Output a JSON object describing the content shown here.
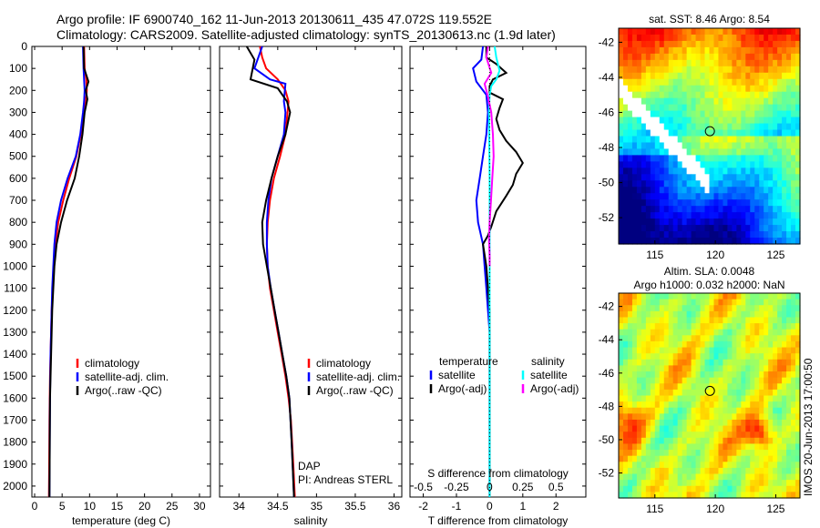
{
  "header": {
    "line1": "Argo profile: IF 6900740_162 11-Jun-2013 20130611_435 47.072S 119.552E",
    "line2": "Climatology: CARS2009. Satellite-adjusted climatology: synTS_20130613.nc (1.9d later)"
  },
  "colors": {
    "climatology": "#ff0000",
    "satellite": "#0000ff",
    "argo": "#000000",
    "sal_satellite": "#00ffff",
    "sal_argo": "#ff00ff"
  },
  "credit": {
    "line1": "DAP",
    "line2": "PI: Andreas STERL"
  },
  "stamp": "IMOS 20-Jun-2013 17:00:50",
  "chart_data": [
    {
      "id": "temperature",
      "type": "line",
      "xlabel": "temperature (deg C)",
      "xlim": [
        -0.5,
        32
      ],
      "xticks": [
        0,
        5,
        10,
        15,
        20,
        25,
        30
      ],
      "ylim": [
        0,
        2050
      ],
      "yticks": [
        0,
        100,
        200,
        300,
        400,
        500,
        600,
        700,
        800,
        900,
        1000,
        1100,
        1200,
        1300,
        1400,
        1500,
        1600,
        1700,
        1800,
        1900,
        2000
      ],
      "legend": [
        "climatology",
        "satellite-adj. clim.",
        "Argo(..raw -QC)"
      ],
      "series": [
        {
          "name": "climatology",
          "color": "climatology",
          "x": [
            9.0,
            9.1,
            9.4,
            9.5,
            9.3,
            9.0,
            8.4,
            7.6,
            6.3,
            5.2,
            4.3,
            3.8,
            3.5,
            3.3,
            3.1,
            3.0,
            2.9,
            2.8,
            2.75,
            2.7,
            2.65,
            2.6
          ],
          "y": [
            0,
            100,
            150,
            200,
            250,
            300,
            400,
            500,
            600,
            700,
            800,
            900,
            1000,
            1100,
            1200,
            1300,
            1400,
            1500,
            1600,
            1700,
            1900,
            2050
          ]
        },
        {
          "name": "satellite-adj. clim.",
          "color": "satellite",
          "x": [
            8.8,
            8.9,
            9.0,
            9.1,
            9.0,
            8.8,
            8.3,
            7.5,
            6.0,
            4.8,
            4.0,
            3.6,
            3.4,
            3.2,
            3.1,
            3.0,
            2.9,
            2.85,
            2.8,
            2.75,
            2.7
          ],
          "y": [
            0,
            100,
            150,
            200,
            250,
            300,
            400,
            500,
            600,
            700,
            800,
            900,
            1000,
            1100,
            1200,
            1300,
            1400,
            1500,
            1600,
            1800,
            2050
          ]
        },
        {
          "name": "Argo(..raw -QC)",
          "color": "argo",
          "x": [
            8.9,
            9.0,
            9.8,
            9.3,
            9.6,
            9.1,
            8.7,
            8.1,
            7.3,
            5.9,
            4.8,
            4.0,
            3.6,
            3.4,
            3.2,
            3.1,
            3.0,
            2.9,
            2.8,
            2.75,
            2.7
          ],
          "y": [
            0,
            100,
            160,
            200,
            240,
            300,
            400,
            500,
            600,
            700,
            800,
            900,
            1000,
            1100,
            1200,
            1300,
            1400,
            1500,
            1600,
            1800,
            2050
          ]
        }
      ]
    },
    {
      "id": "salinity",
      "type": "line",
      "xlabel": "salinity",
      "xlim": [
        33.75,
        36.1
      ],
      "xticks": [
        34,
        34.5,
        35,
        35.5,
        36
      ],
      "ylim": [
        0,
        2050
      ],
      "legend": [
        "climatology",
        "satellite-adj. clim.",
        "Argo(..raw -QC)"
      ],
      "series": [
        {
          "name": "climatology",
          "color": "climatology",
          "x": [
            34.27,
            34.3,
            34.35,
            34.5,
            34.6,
            34.64,
            34.6,
            34.53,
            34.45,
            34.4,
            34.37,
            34.36,
            34.37,
            34.4,
            34.45,
            34.5,
            34.55,
            34.6,
            34.64,
            34.67,
            34.7,
            34.72
          ],
          "y": [
            0,
            50,
            100,
            150,
            200,
            250,
            400,
            500,
            600,
            700,
            800,
            900,
            1000,
            1100,
            1200,
            1300,
            1400,
            1500,
            1600,
            1700,
            1900,
            2050
          ]
        },
        {
          "name": "satellite-adj. clim.",
          "color": "satellite",
          "x": [
            34.3,
            34.2,
            34.4,
            34.6,
            34.58,
            34.6,
            34.58,
            34.5,
            34.42,
            34.38,
            34.36,
            34.36,
            34.37,
            34.41,
            34.46,
            34.51,
            34.56,
            34.61,
            34.65,
            34.68,
            34.71
          ],
          "y": [
            0,
            100,
            150,
            170,
            250,
            300,
            400,
            500,
            600,
            700,
            800,
            900,
            1000,
            1100,
            1200,
            1300,
            1400,
            1500,
            1600,
            1800,
            2050
          ]
        },
        {
          "name": "Argo(..raw -QC)",
          "color": "argo",
          "x": [
            34.1,
            34.2,
            34.15,
            34.5,
            34.62,
            34.66,
            34.6,
            34.5,
            34.42,
            34.35,
            34.3,
            34.31,
            34.36,
            34.41,
            34.46,
            34.51,
            34.56,
            34.61,
            34.65,
            34.68,
            34.71
          ],
          "y": [
            0,
            60,
            150,
            190,
            250,
            300,
            400,
            500,
            600,
            700,
            800,
            900,
            1000,
            1100,
            1200,
            1300,
            1400,
            1500,
            1600,
            1800,
            2050
          ]
        }
      ]
    },
    {
      "id": "difference",
      "type": "line",
      "xlabel": "T difference from climatology",
      "xlim": [
        -2.4,
        2.9
      ],
      "xticks": [
        -2,
        -1,
        0,
        1,
        2
      ],
      "top_axis_label": "S difference from climatology",
      "top_ticks": [
        -0.5,
        -0.25,
        0,
        0.25,
        0.5
      ],
      "top_tick_labels": [
        "-0.5",
        "-0.25",
        "0",
        "0.25",
        "0.5"
      ],
      "ylim": [
        0,
        2050
      ],
      "legend": {
        "temperature": {
          "heading": "temperature",
          "items": [
            "satellite",
            "Argo(-adj)"
          ]
        },
        "salinity": {
          "heading": "salinity",
          "items": [
            "satellite",
            "Argo(-adj)"
          ]
        }
      },
      "series": [
        {
          "name": "satellite",
          "group": "temperature",
          "color": "satellite",
          "x": [
            -0.2,
            -0.25,
            -0.5,
            -0.4,
            -0.1,
            -0.05,
            -0.1,
            -0.2,
            -0.3,
            -0.4,
            -0.35,
            -0.2,
            -0.15,
            -0.1,
            -0.05,
            0,
            0,
            0,
            0,
            0
          ],
          "y": [
            0,
            60,
            100,
            160,
            220,
            300,
            400,
            500,
            600,
            700,
            800,
            900,
            1000,
            1100,
            1200,
            1300,
            1400,
            1500,
            1600,
            2050
          ]
        },
        {
          "name": "Argo(-adj)",
          "group": "temperature",
          "color": "argo",
          "x": [
            -0.1,
            -0.1,
            0.2,
            0.5,
            0.1,
            0.0,
            0.0,
            0.4,
            0.3,
            0.2,
            0.3,
            0.5,
            0.8,
            1.0,
            0.8,
            0.7,
            0.5,
            0.2,
            0.05,
            -0.05,
            -0.2,
            -0.1,
            0.0,
            0.0
          ],
          "y": [
            0,
            50,
            80,
            120,
            150,
            180,
            210,
            240,
            280,
            330,
            380,
            430,
            480,
            530,
            580,
            630,
            680,
            750,
            820,
            860,
            900,
            1000,
            1200,
            2050
          ]
        },
        {
          "name": "satellite",
          "group": "salinity",
          "color": "sal_satellite",
          "x": [
            0.15,
            0.2,
            0.3,
            0.2,
            0.05,
            0.0,
            -0.02,
            -0.01,
            0.0,
            0.0,
            0.0,
            0.0,
            0.0,
            0.0
          ],
          "y": [
            0,
            50,
            110,
            150,
            180,
            220,
            300,
            450,
            600,
            800,
            1000,
            1300,
            1600,
            2050
          ]
        },
        {
          "name": "Argo(-adj)",
          "group": "salinity",
          "color": "sal_argo",
          "x": [
            -0.05,
            -0.1,
            0.05,
            -0.15,
            -0.05,
            0.05,
            0.1,
            0.12,
            0.08,
            0.04,
            0.0,
            -0.02,
            0.0,
            0.0
          ],
          "y": [
            0,
            50,
            120,
            170,
            230,
            300,
            400,
            500,
            600,
            700,
            800,
            880,
            950,
            1000
          ]
        }
      ]
    },
    {
      "id": "sst_map",
      "type": "heatmap",
      "title": "sat. SST: 8.46 Argo: 8.54",
      "xlim": [
        112,
        127
      ],
      "ylim": [
        -53.5,
        -41.2
      ],
      "xticks": [
        115,
        120,
        125
      ],
      "yticks": [
        -42,
        -44,
        -46,
        -48,
        -50,
        -52
      ],
      "argo_position": {
        "lon": 119.55,
        "lat": -47.07
      }
    },
    {
      "id": "sla_map",
      "type": "heatmap",
      "title": "Altim. SLA: 0.0048",
      "subtitle": "Argo h1000: 0.032 h2000: NaN",
      "xlim": [
        112,
        127
      ],
      "ylim": [
        -53.5,
        -41.2
      ],
      "xticks": [
        115,
        120,
        125
      ],
      "yticks": [
        -42,
        -44,
        -46,
        -48,
        -50,
        -52
      ],
      "argo_position": {
        "lon": 119.55,
        "lat": -47.07
      }
    }
  ]
}
